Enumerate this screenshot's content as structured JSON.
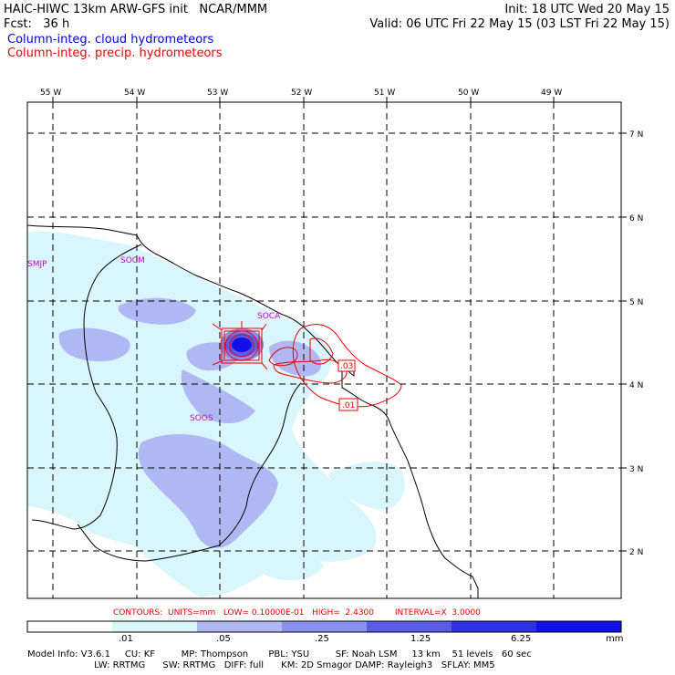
{
  "header": {
    "title_left": "HAIC-HIWC 13km ARW-GFS init   NCAR/MMM",
    "fcst": "Fcst:   36 h",
    "init": "Init: 18 UTC Wed 20 May 15",
    "valid": "Valid: 06 UTC Fri 22 May 15 (03 LST Fri 22 May 15)",
    "field_cloud": "Column-integ. cloud hydrometeors",
    "field_precip": "Column-integ. precip. hydrometeors"
  },
  "map": {
    "longitudes": [
      "55 W",
      "54 W",
      "53 W",
      "52 W",
      "51 W",
      "50 W",
      "49 W"
    ],
    "latitudes": [
      "7 N",
      "6 N",
      "5 N",
      "4 N",
      "3 N",
      "2 N"
    ],
    "stations": [
      "SMJP",
      "SOCM",
      "SOCA",
      "SOOS"
    ],
    "contour_labels": [
      ".03",
      ".01"
    ]
  },
  "contours_line": "CONTOURS:  UNITS=mm   LOW= 0.10000E-01   HIGH=  2.4300        INTERVAL=X  3.0000",
  "colorbar": {
    "ticks": [
      ".01",
      ".05",
      ".25",
      "1.25",
      "6.25"
    ],
    "units": "mm",
    "colors": [
      "#ffffff",
      "#d8f6fb",
      "#b0b8f4",
      "#8a90ee",
      "#5a5ce8",
      "#3030e4",
      "#1010ea"
    ]
  },
  "model_info": {
    "line1": "Model Info: V3.6.1     CU: KF         MP: Thompson       PBL: YSU         SF: Noah LSM     13 km    51 levels   60 sec",
    "line2": "                       LW: RRTMG      SW: RRTMG   DIFF: full      KM: 2D Smagor DAMP: Rayleigh3   SFLAY: MM5"
  }
}
